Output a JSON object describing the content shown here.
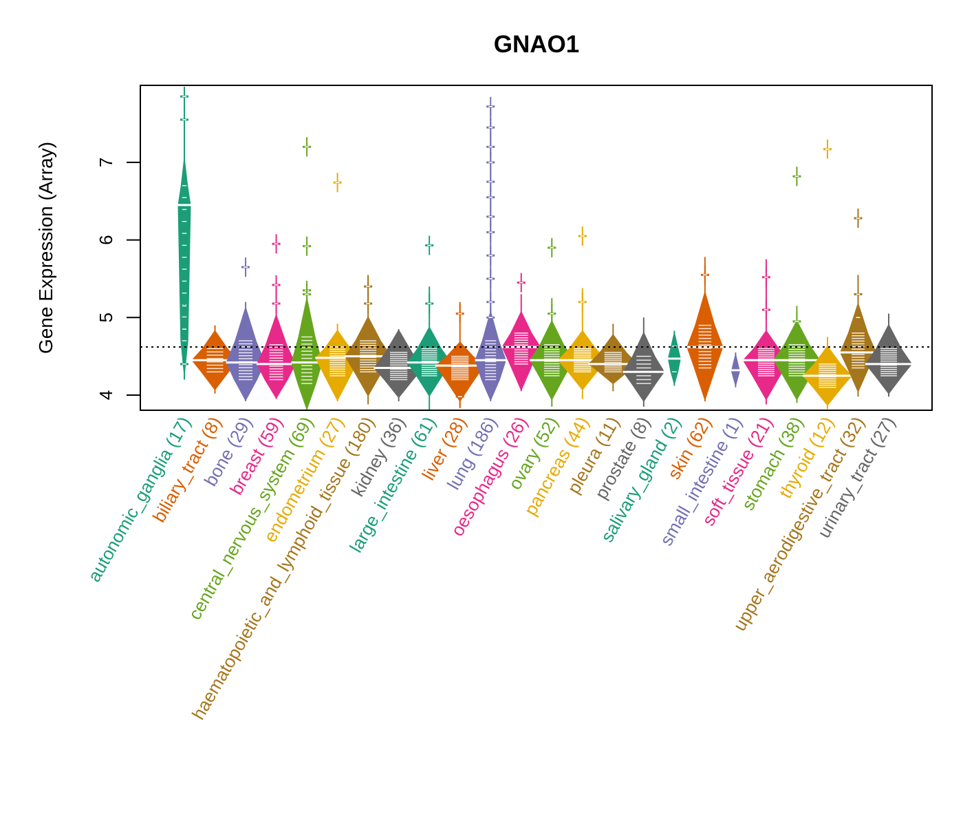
{
  "chart_data": {
    "type": "beanplot",
    "title": "GNAO1",
    "xlabel": "",
    "ylabel": "Gene Expression (Array)",
    "ylim": [
      3.8,
      7.98
    ],
    "yticks": [
      4,
      5,
      6,
      7
    ],
    "reference_line": {
      "value": 4.62,
      "style": "dotted",
      "color": "#000000"
    },
    "grid": false,
    "legend": "none",
    "categories": [
      {
        "name": "autonomic_ganglia",
        "n": 17,
        "label": "autonomic_ganglia (17)",
        "color": "#1B9E77",
        "median": 6.45,
        "min": 4.2,
        "max": 7.95,
        "q1": 4.7,
        "q3": 6.7,
        "density_width": 0.25,
        "outliers": [
          7.85,
          7.55,
          5.15,
          4.85,
          4.4
        ]
      },
      {
        "name": "biliary_tract",
        "n": 8,
        "label": "biliary_tract (8)",
        "color": "#D95F02",
        "median": 4.45,
        "min": 4.02,
        "max": 4.9,
        "q1": 4.3,
        "q3": 4.6,
        "density_width": 0.9,
        "outliers": []
      },
      {
        "name": "bone",
        "n": 29,
        "label": "bone (29)",
        "color": "#7570B3",
        "median": 4.42,
        "min": 3.92,
        "max": 5.2,
        "q1": 4.2,
        "q3": 4.7,
        "density_width": 0.75,
        "outliers": [
          5.65
        ]
      },
      {
        "name": "breast",
        "n": 59,
        "label": "breast (59)",
        "color": "#E7298A",
        "median": 4.4,
        "min": 3.95,
        "max": 5.45,
        "q1": 4.2,
        "q3": 4.65,
        "density_width": 0.75,
        "outliers": [
          5.95,
          5.42,
          5.18
        ]
      },
      {
        "name": "central_nervous_system",
        "n": 69,
        "label": "central_nervous_system (69)",
        "color": "#66A61E",
        "median": 4.42,
        "min": 3.8,
        "max": 5.3,
        "q1": 4.15,
        "q3": 4.75,
        "density_width": 0.6,
        "outliers": [
          7.2,
          5.92,
          5.35,
          5.3
        ]
      },
      {
        "name": "endometrium",
        "n": 27,
        "label": "endometrium (27)",
        "color": "#E6AB02",
        "median": 4.48,
        "min": 3.92,
        "max": 4.92,
        "q1": 4.25,
        "q3": 4.62,
        "density_width": 0.85,
        "outliers": [
          6.74
        ]
      },
      {
        "name": "haematopoietic_and_lymphoid_tissue",
        "n": 180,
        "label": "haematopoietic_and_lymphoid_tissue (180)",
        "color": "#A6761D",
        "median": 4.5,
        "min": 3.88,
        "max": 5.55,
        "q1": 4.3,
        "q3": 4.7,
        "density_width": 0.9,
        "outliers": [
          5.4,
          5.18
        ]
      },
      {
        "name": "kidney",
        "n": 36,
        "label": "kidney (36)",
        "color": "#666666",
        "median": 4.35,
        "min": 3.92,
        "max": 4.85,
        "q1": 4.2,
        "q3": 4.55,
        "density_width": 0.95,
        "outliers": []
      },
      {
        "name": "large_intestine",
        "n": 61,
        "label": "large_intestine (61)",
        "color": "#1B9E77",
        "median": 4.42,
        "min": 3.8,
        "max": 5.4,
        "q1": 4.25,
        "q3": 4.6,
        "density_width": 0.85,
        "outliers": [
          5.93,
          5.18
        ]
      },
      {
        "name": "liver",
        "n": 28,
        "label": "liver (28)",
        "color": "#D95F02",
        "median": 4.38,
        "min": 3.83,
        "max": 5.2,
        "q1": 4.2,
        "q3": 4.5,
        "density_width": 0.95,
        "outliers": [
          5.05,
          3.98
        ]
      },
      {
        "name": "lung",
        "n": 186,
        "label": "lung (186)",
        "color": "#7570B3",
        "median": 4.45,
        "min": 3.92,
        "max": 7.72,
        "q1": 4.2,
        "q3": 4.7,
        "density_width": 0.6,
        "outliers": [
          7.72,
          7.45,
          7.2,
          7.0,
          6.75,
          6.55,
          6.3,
          6.1,
          5.8,
          5.5,
          5.2,
          5.0
        ]
      },
      {
        "name": "oesophagus",
        "n": 26,
        "label": "oesophagus (26)",
        "color": "#E7298A",
        "median": 4.62,
        "min": 4.05,
        "max": 5.3,
        "q1": 4.4,
        "q3": 4.8,
        "density_width": 0.75,
        "outliers": [
          5.45
        ]
      },
      {
        "name": "ovary",
        "n": 52,
        "label": "ovary (52)",
        "color": "#66A61E",
        "median": 4.45,
        "min": 3.85,
        "max": 5.25,
        "q1": 4.25,
        "q3": 4.65,
        "density_width": 0.85,
        "outliers": [
          5.9,
          5.05
        ]
      },
      {
        "name": "pancreas",
        "n": 44,
        "label": "pancreas (44)",
        "color": "#E6AB02",
        "median": 4.45,
        "min": 3.95,
        "max": 5.38,
        "q1": 4.3,
        "q3": 4.6,
        "density_width": 0.95,
        "outliers": [
          6.05,
          5.2
        ]
      },
      {
        "name": "pleura",
        "n": 11,
        "label": "pleura (11)",
        "color": "#A6761D",
        "median": 4.4,
        "min": 4.05,
        "max": 4.92,
        "q1": 4.3,
        "q3": 4.55,
        "density_width": 0.95,
        "outliers": []
      },
      {
        "name": "prostate",
        "n": 8,
        "label": "prostate (8)",
        "color": "#666666",
        "median": 4.3,
        "min": 3.85,
        "max": 5.0,
        "q1": 4.15,
        "q3": 4.5,
        "density_width": 0.8,
        "outliers": []
      },
      {
        "name": "salivary_gland",
        "n": 2,
        "label": "salivary_gland (2)",
        "color": "#1B9E77",
        "median": 4.47,
        "min": 4.12,
        "max": 4.83,
        "q1": 4.3,
        "q3": 4.63,
        "density_width": 0.25,
        "outliers": []
      },
      {
        "name": "skin",
        "n": 62,
        "label": "skin (62)",
        "color": "#D95F02",
        "median": 4.62,
        "min": 3.92,
        "max": 5.78,
        "q1": 4.35,
        "q3": 4.9,
        "density_width": 0.7,
        "outliers": [
          5.55
        ]
      },
      {
        "name": "small_intestine",
        "n": 1,
        "label": "small_intestine (1)",
        "color": "#7570B3",
        "median": 4.32,
        "min": 4.1,
        "max": 4.55,
        "q1": 4.32,
        "q3": 4.32,
        "density_width": 0.3,
        "outliers": []
      },
      {
        "name": "soft_tissue",
        "n": 21,
        "label": "soft_tissue (21)",
        "color": "#E7298A",
        "median": 4.45,
        "min": 3.88,
        "max": 5.75,
        "q1": 4.25,
        "q3": 4.6,
        "density_width": 0.9,
        "outliers": [
          5.52,
          5.1
        ]
      },
      {
        "name": "stomach",
        "n": 38,
        "label": "stomach (38)",
        "color": "#66A61E",
        "median": 4.45,
        "min": 3.9,
        "max": 5.15,
        "q1": 4.25,
        "q3": 4.65,
        "density_width": 0.9,
        "outliers": [
          6.82,
          4.95
        ]
      },
      {
        "name": "thyroid",
        "n": 12,
        "label": "thyroid (12)",
        "color": "#E6AB02",
        "median": 4.25,
        "min": 3.82,
        "max": 4.75,
        "q1": 4.1,
        "q3": 4.4,
        "density_width": 0.95,
        "outliers": [
          7.17
        ]
      },
      {
        "name": "upper_aerodigestive_tract",
        "n": 32,
        "label": "upper_aerodigestive_tract (32)",
        "color": "#A6761D",
        "median": 4.55,
        "min": 3.98,
        "max": 5.55,
        "q1": 4.35,
        "q3": 4.8,
        "density_width": 0.7,
        "outliers": [
          6.28,
          5.3,
          5.0
        ]
      },
      {
        "name": "urinary_tract",
        "n": 27,
        "label": "urinary_tract (27)",
        "color": "#666666",
        "median": 4.4,
        "min": 3.98,
        "max": 5.05,
        "q1": 4.25,
        "q3": 4.6,
        "density_width": 0.9,
        "outliers": []
      }
    ]
  }
}
